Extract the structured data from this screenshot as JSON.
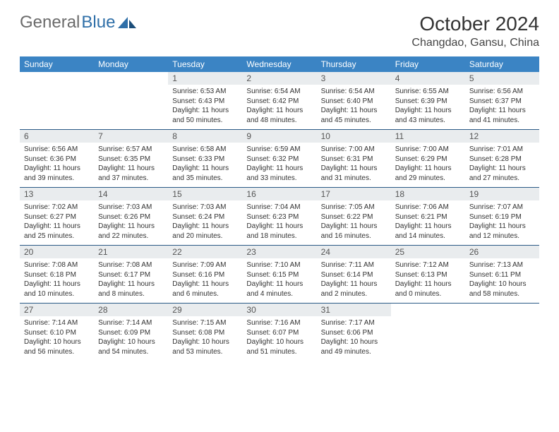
{
  "brand": {
    "word1": "General",
    "word2": "Blue"
  },
  "colors": {
    "header_bg": "#3b84c4",
    "daynum_bg": "#e9ecee",
    "row_border": "#2a5a86",
    "logo_gray": "#6b6b6b",
    "logo_blue": "#2f6fa8"
  },
  "title": {
    "month": "October 2024",
    "location": "Changdao, Gansu, China"
  },
  "day_headers": [
    "Sunday",
    "Monday",
    "Tuesday",
    "Wednesday",
    "Thursday",
    "Friday",
    "Saturday"
  ],
  "weeks": [
    [
      null,
      null,
      {
        "n": "1",
        "sr": "6:53 AM",
        "ss": "6:43 PM",
        "dl": "11 hours and 50 minutes."
      },
      {
        "n": "2",
        "sr": "6:54 AM",
        "ss": "6:42 PM",
        "dl": "11 hours and 48 minutes."
      },
      {
        "n": "3",
        "sr": "6:54 AM",
        "ss": "6:40 PM",
        "dl": "11 hours and 45 minutes."
      },
      {
        "n": "4",
        "sr": "6:55 AM",
        "ss": "6:39 PM",
        "dl": "11 hours and 43 minutes."
      },
      {
        "n": "5",
        "sr": "6:56 AM",
        "ss": "6:37 PM",
        "dl": "11 hours and 41 minutes."
      }
    ],
    [
      {
        "n": "6",
        "sr": "6:56 AM",
        "ss": "6:36 PM",
        "dl": "11 hours and 39 minutes."
      },
      {
        "n": "7",
        "sr": "6:57 AM",
        "ss": "6:35 PM",
        "dl": "11 hours and 37 minutes."
      },
      {
        "n": "8",
        "sr": "6:58 AM",
        "ss": "6:33 PM",
        "dl": "11 hours and 35 minutes."
      },
      {
        "n": "9",
        "sr": "6:59 AM",
        "ss": "6:32 PM",
        "dl": "11 hours and 33 minutes."
      },
      {
        "n": "10",
        "sr": "7:00 AM",
        "ss": "6:31 PM",
        "dl": "11 hours and 31 minutes."
      },
      {
        "n": "11",
        "sr": "7:00 AM",
        "ss": "6:29 PM",
        "dl": "11 hours and 29 minutes."
      },
      {
        "n": "12",
        "sr": "7:01 AM",
        "ss": "6:28 PM",
        "dl": "11 hours and 27 minutes."
      }
    ],
    [
      {
        "n": "13",
        "sr": "7:02 AM",
        "ss": "6:27 PM",
        "dl": "11 hours and 25 minutes."
      },
      {
        "n": "14",
        "sr": "7:03 AM",
        "ss": "6:26 PM",
        "dl": "11 hours and 22 minutes."
      },
      {
        "n": "15",
        "sr": "7:03 AM",
        "ss": "6:24 PM",
        "dl": "11 hours and 20 minutes."
      },
      {
        "n": "16",
        "sr": "7:04 AM",
        "ss": "6:23 PM",
        "dl": "11 hours and 18 minutes."
      },
      {
        "n": "17",
        "sr": "7:05 AM",
        "ss": "6:22 PM",
        "dl": "11 hours and 16 minutes."
      },
      {
        "n": "18",
        "sr": "7:06 AM",
        "ss": "6:21 PM",
        "dl": "11 hours and 14 minutes."
      },
      {
        "n": "19",
        "sr": "7:07 AM",
        "ss": "6:19 PM",
        "dl": "11 hours and 12 minutes."
      }
    ],
    [
      {
        "n": "20",
        "sr": "7:08 AM",
        "ss": "6:18 PM",
        "dl": "11 hours and 10 minutes."
      },
      {
        "n": "21",
        "sr": "7:08 AM",
        "ss": "6:17 PM",
        "dl": "11 hours and 8 minutes."
      },
      {
        "n": "22",
        "sr": "7:09 AM",
        "ss": "6:16 PM",
        "dl": "11 hours and 6 minutes."
      },
      {
        "n": "23",
        "sr": "7:10 AM",
        "ss": "6:15 PM",
        "dl": "11 hours and 4 minutes."
      },
      {
        "n": "24",
        "sr": "7:11 AM",
        "ss": "6:14 PM",
        "dl": "11 hours and 2 minutes."
      },
      {
        "n": "25",
        "sr": "7:12 AM",
        "ss": "6:13 PM",
        "dl": "11 hours and 0 minutes."
      },
      {
        "n": "26",
        "sr": "7:13 AM",
        "ss": "6:11 PM",
        "dl": "10 hours and 58 minutes."
      }
    ],
    [
      {
        "n": "27",
        "sr": "7:14 AM",
        "ss": "6:10 PM",
        "dl": "10 hours and 56 minutes."
      },
      {
        "n": "28",
        "sr": "7:14 AM",
        "ss": "6:09 PM",
        "dl": "10 hours and 54 minutes."
      },
      {
        "n": "29",
        "sr": "7:15 AM",
        "ss": "6:08 PM",
        "dl": "10 hours and 53 minutes."
      },
      {
        "n": "30",
        "sr": "7:16 AM",
        "ss": "6:07 PM",
        "dl": "10 hours and 51 minutes."
      },
      {
        "n": "31",
        "sr": "7:17 AM",
        "ss": "6:06 PM",
        "dl": "10 hours and 49 minutes."
      },
      null,
      null
    ]
  ],
  "labels": {
    "sunrise": "Sunrise:",
    "sunset": "Sunset:",
    "daylight": "Daylight:"
  }
}
